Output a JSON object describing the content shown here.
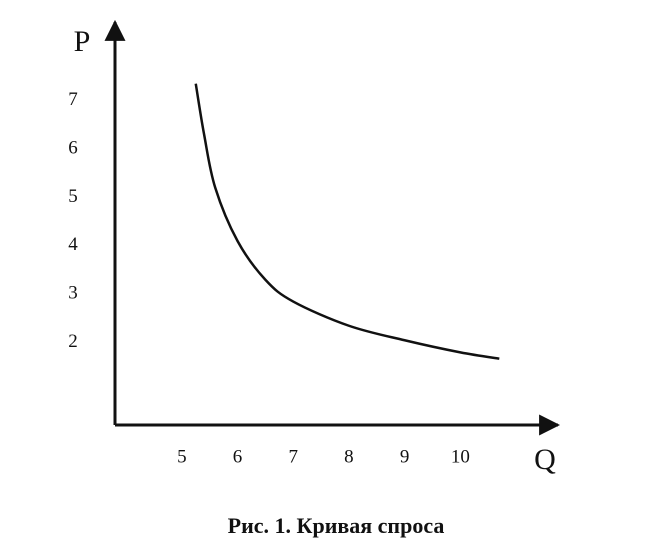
{
  "chart_data": {
    "type": "line",
    "title": "Рис. 1. Кривая спроса",
    "x_label": "Q",
    "y_label": "P",
    "xlim": [
      3.8,
      11.7
    ],
    "ylim": [
      0.3,
      8.5
    ],
    "xticks": [
      5,
      6,
      7,
      8,
      9,
      10
    ],
    "yticks": [
      2,
      3,
      4,
      5,
      6,
      7
    ],
    "grid": false,
    "x": [
      5.25,
      5.4,
      5.6,
      6.0,
      6.5,
      7,
      8,
      9,
      10,
      10.7
    ],
    "values": [
      7.35,
      6.3,
      5.2,
      4.1,
      3.3,
      2.85,
      2.35,
      2.05,
      1.8,
      1.67
    ],
    "color": "#111111"
  }
}
